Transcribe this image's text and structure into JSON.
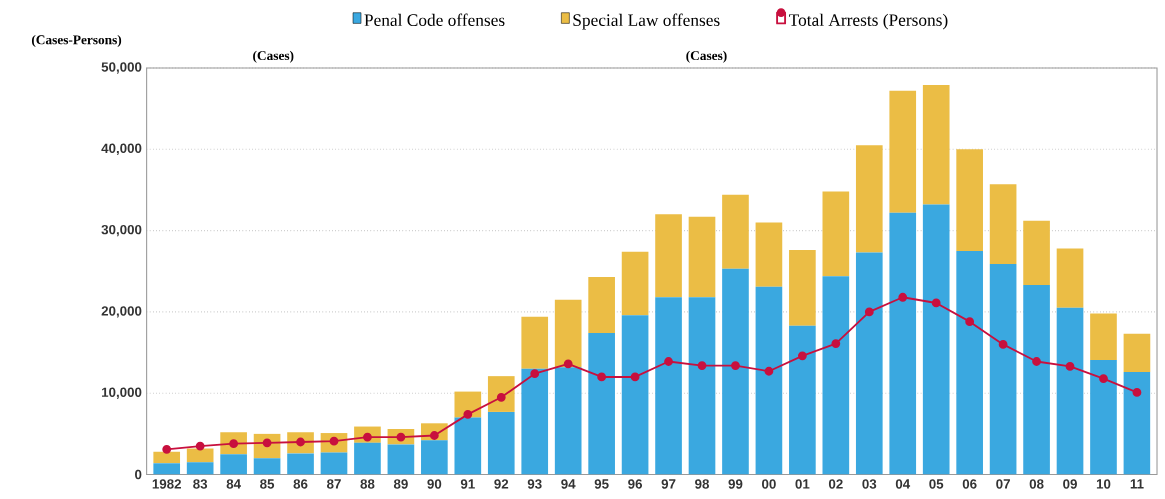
{
  "chart_data": {
    "type": "bar",
    "stacked": true,
    "ylabel": "(Cases-Persons)",
    "legend": "top",
    "grid": "y",
    "annotations": [
      "(Cases)",
      "(Cases)"
    ],
    "categories": [
      "1982",
      "83",
      "84",
      "85",
      "86",
      "87",
      "88",
      "89",
      "90",
      "91",
      "92",
      "93",
      "94",
      "95",
      "96",
      "97",
      "98",
      "99",
      "00",
      "01",
      "02",
      "03",
      "04",
      "05",
      "06",
      "07",
      "08",
      "09",
      "10",
      "11"
    ],
    "ylim": [
      0,
      50000
    ],
    "yticks": [
      {
        "value": 0,
        "label": "0"
      },
      {
        "value": 10000,
        "label": "10,000"
      },
      {
        "value": 20000,
        "label": "20,000"
      },
      {
        "value": 30000,
        "label": "30,000"
      },
      {
        "value": 40000,
        "label": "40,000"
      },
      {
        "value": 50000,
        "label": "50,000"
      }
    ],
    "series": [
      {
        "name": "Penal Code offenses",
        "color": "#3aa8e0",
        "values": [
          1400,
          1500,
          2500,
          2000,
          2600,
          2700,
          3900,
          3700,
          4200,
          7000,
          7700,
          13000,
          13200,
          17400,
          19600,
          21800,
          21800,
          25300,
          23100,
          18300,
          24400,
          27300,
          32200,
          33200,
          27500,
          25900,
          23300,
          20500,
          14100,
          12600
        ]
      },
      {
        "name": "Special Law offenses",
        "color": "#ebbd45",
        "values": [
          1400,
          1700,
          2700,
          3000,
          2600,
          2400,
          2000,
          1900,
          2100,
          3200,
          4400,
          6400,
          8300,
          6900,
          7800,
          10200,
          9900,
          9100,
          7900,
          9300,
          10400,
          13200,
          15000,
          14700,
          12500,
          9800,
          7900,
          7300,
          5700,
          4700
        ]
      },
      {
        "name": "Total Arrests (Persons)",
        "type": "line",
        "color": "#c8103e",
        "marker": "circle",
        "line_style": "solid",
        "values": [
          3100,
          3500,
          3800,
          3900,
          4000,
          4100,
          4600,
          4600,
          4800,
          7400,
          9500,
          12400,
          13600,
          12000,
          12000,
          13900,
          13400,
          13400,
          12700,
          14600,
          16100,
          20000,
          21800,
          21100,
          18800,
          16000,
          13900,
          13300,
          11800,
          10100
        ]
      }
    ]
  }
}
